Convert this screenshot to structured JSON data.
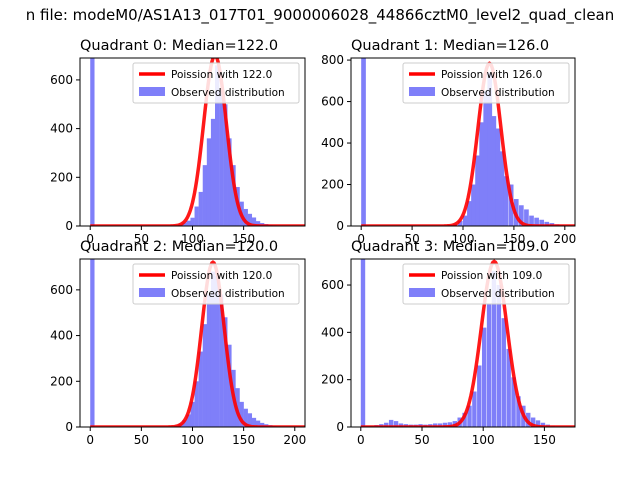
{
  "figure": {
    "suptitle": "n file: modeM0/AS1A13_017T01_9000006028_44866cztM0_level2_quad_clean"
  },
  "chart_data": [
    {
      "type": "bar",
      "title": "Quadrant 0: Median=122.0",
      "xlim": [
        -10,
        210
      ],
      "ylim": [
        0,
        690
      ],
      "xticks": [
        0,
        50,
        100,
        150
      ],
      "yticks": [
        0,
        200,
        400,
        600
      ],
      "legend_placement": "upper-right",
      "hist": {
        "name": "Observed distribution",
        "color": "#7f7ff9",
        "bin_width": 4.2,
        "bins": [
          [
            0,
            690
          ],
          [
            4,
            2
          ],
          [
            82,
            2
          ],
          [
            86,
            6
          ],
          [
            90,
            14
          ],
          [
            94,
            22
          ],
          [
            98,
            34
          ],
          [
            102,
            80
          ],
          [
            106,
            140
          ],
          [
            110,
            250
          ],
          [
            114,
            360
          ],
          [
            118,
            440
          ],
          [
            122,
            660
          ],
          [
            126,
            560
          ],
          [
            130,
            500
          ],
          [
            134,
            360
          ],
          [
            138,
            250
          ],
          [
            142,
            160
          ],
          [
            146,
            100
          ],
          [
            150,
            70
          ],
          [
            154,
            50
          ],
          [
            158,
            35
          ],
          [
            162,
            20
          ],
          [
            166,
            12
          ],
          [
            170,
            8
          ],
          [
            174,
            5
          ],
          [
            178,
            3
          ],
          [
            182,
            2
          ]
        ]
      },
      "curve": {
        "name": "Poission with 122.0",
        "mu": 122.0,
        "color": "#ff0000"
      }
    },
    {
      "type": "bar",
      "title": "Quadrant 1: Median=126.0",
      "xlim": [
        -10,
        210
      ],
      "ylim": [
        0,
        810
      ],
      "xticks": [
        0,
        50,
        100,
        150,
        200
      ],
      "yticks": [
        0,
        200,
        400,
        600,
        800
      ],
      "legend_placement": "upper-right",
      "hist": {
        "name": "Observed distribution",
        "color": "#7f7ff9",
        "bin_width": 4.6,
        "bins": [
          [
            0,
            810
          ],
          [
            5,
            2
          ],
          [
            80,
            2
          ],
          [
            85,
            5
          ],
          [
            90,
            10
          ],
          [
            95,
            25
          ],
          [
            100,
            50
          ],
          [
            104,
            120
          ],
          [
            108,
            200
          ],
          [
            112,
            340
          ],
          [
            116,
            500
          ],
          [
            120,
            650
          ],
          [
            124,
            740
          ],
          [
            128,
            530
          ],
          [
            132,
            470
          ],
          [
            136,
            360
          ],
          [
            140,
            240
          ],
          [
            145,
            200
          ],
          [
            150,
            130
          ],
          [
            155,
            100
          ],
          [
            160,
            80
          ],
          [
            165,
            50
          ],
          [
            170,
            40
          ],
          [
            175,
            30
          ],
          [
            180,
            20
          ],
          [
            185,
            14
          ],
          [
            190,
            8
          ],
          [
            195,
            5
          ]
        ]
      },
      "curve": {
        "name": "Poission with 126.0",
        "mu": 126.0,
        "color": "#ff0000"
      }
    },
    {
      "type": "bar",
      "title": "Quadrant 2: Median=120.0",
      "xlim": [
        -10,
        210
      ],
      "ylim": [
        0,
        735
      ],
      "xticks": [
        0,
        50,
        100,
        150,
        200
      ],
      "yticks": [
        0,
        200,
        400,
        600
      ],
      "legend_placement": "upper-right",
      "hist": {
        "name": "Observed distribution",
        "color": "#7f7ff9",
        "bin_width": 4.2,
        "bins": [
          [
            0,
            735
          ],
          [
            4,
            2
          ],
          [
            78,
            2
          ],
          [
            82,
            6
          ],
          [
            86,
            15
          ],
          [
            90,
            30
          ],
          [
            94,
            55
          ],
          [
            98,
            110
          ],
          [
            102,
            200
          ],
          [
            106,
            330
          ],
          [
            110,
            450
          ],
          [
            114,
            580
          ],
          [
            118,
            680
          ],
          [
            122,
            660
          ],
          [
            126,
            580
          ],
          [
            130,
            480
          ],
          [
            134,
            360
          ],
          [
            138,
            250
          ],
          [
            142,
            170
          ],
          [
            146,
            110
          ],
          [
            150,
            80
          ],
          [
            154,
            60
          ],
          [
            158,
            40
          ],
          [
            162,
            28
          ],
          [
            166,
            18
          ],
          [
            170,
            12
          ],
          [
            174,
            8
          ],
          [
            178,
            5
          ],
          [
            182,
            3
          ],
          [
            186,
            2
          ]
        ]
      },
      "curve": {
        "name": "Poission with 120.0",
        "mu": 120.0,
        "color": "#ff0000"
      }
    },
    {
      "type": "bar",
      "title": "Quadrant 3: Median=109.0",
      "xlim": [
        -8,
        175
      ],
      "ylim": [
        0,
        710
      ],
      "xticks": [
        0,
        50,
        100,
        150
      ],
      "yticks": [
        0,
        200,
        400,
        600
      ],
      "legend_placement": "upper-right",
      "hist": {
        "name": "Observed distribution",
        "color": "#7f7ff9",
        "bin_width": 3.6,
        "bins": [
          [
            0,
            710
          ],
          [
            3,
            4
          ],
          [
            7,
            5
          ],
          [
            11,
            8
          ],
          [
            15,
            12
          ],
          [
            19,
            18
          ],
          [
            23,
            30
          ],
          [
            27,
            25
          ],
          [
            31,
            15
          ],
          [
            35,
            12
          ],
          [
            39,
            10
          ],
          [
            43,
            10
          ],
          [
            47,
            12
          ],
          [
            51,
            10
          ],
          [
            55,
            12
          ],
          [
            59,
            15
          ],
          [
            63,
            15
          ],
          [
            67,
            18
          ],
          [
            71,
            20
          ],
          [
            75,
            25
          ],
          [
            79,
            40
          ],
          [
            83,
            60
          ],
          [
            87,
            90
          ],
          [
            91,
            150
          ],
          [
            95,
            260
          ],
          [
            99,
            420
          ],
          [
            103,
            520
          ],
          [
            107,
            660
          ],
          [
            111,
            600
          ],
          [
            115,
            460
          ],
          [
            119,
            330
          ],
          [
            123,
            210
          ],
          [
            127,
            130
          ],
          [
            131,
            90
          ],
          [
            135,
            60
          ],
          [
            139,
            40
          ],
          [
            143,
            28
          ],
          [
            147,
            18
          ],
          [
            151,
            10
          ],
          [
            155,
            5
          ],
          [
            159,
            3
          ]
        ]
      },
      "curve": {
        "name": "Poission with 109.0",
        "mu": 109.0,
        "color": "#ff0000"
      }
    }
  ]
}
